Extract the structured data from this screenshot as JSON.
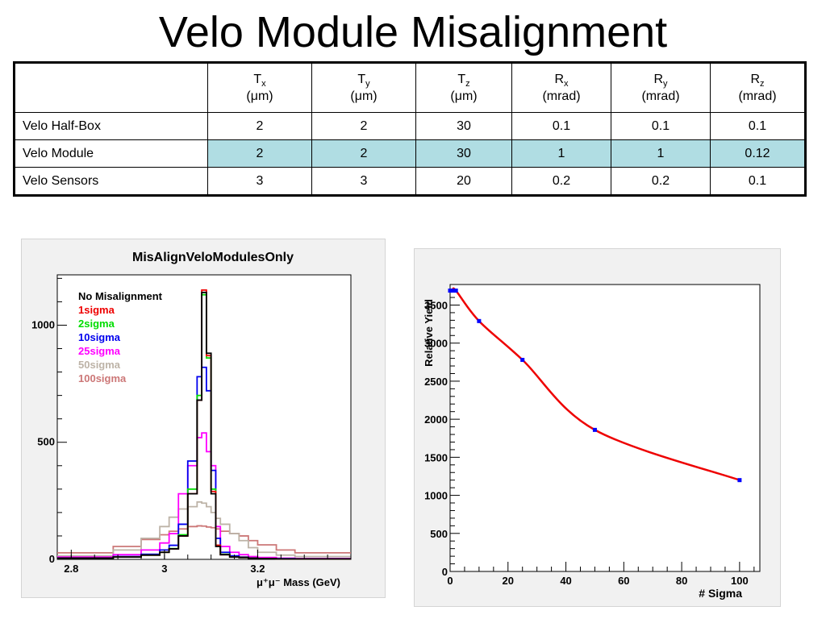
{
  "slide": {
    "title": "Velo Module Misalignment"
  },
  "table": {
    "headers": [
      {
        "sym": "T",
        "sub": "x",
        "unit": "(μm)"
      },
      {
        "sym": "T",
        "sub": "y",
        "unit": "(μm)"
      },
      {
        "sym": "T",
        "sub": "z",
        "unit": "(μm)"
      },
      {
        "sym": "R",
        "sub": "x",
        "unit": "(mrad)"
      },
      {
        "sym": "R",
        "sub": "y",
        "unit": "(mrad)"
      },
      {
        "sym": "R",
        "sub": "z",
        "unit": "(mrad)"
      }
    ],
    "rows": [
      {
        "label": "Velo Half-Box",
        "values": [
          "2",
          "2",
          "30",
          "0.1",
          "0.1",
          "0.1"
        ],
        "highlight": false
      },
      {
        "label": "Velo Module",
        "values": [
          "2",
          "2",
          "30",
          "1",
          "1",
          "0.12"
        ],
        "highlight": true
      },
      {
        "label": "Velo Sensors",
        "values": [
          "3",
          "3",
          "20",
          "0.2",
          "0.2",
          "0.1"
        ],
        "highlight": false
      }
    ],
    "highlight_color": "#b0dde3"
  },
  "chart_data": [
    {
      "type": "line",
      "title": "MisAlignVeloModulesOnly",
      "xlabel": "μ⁺μ⁻ Mass (GeV)",
      "ylabel": "",
      "xlim": [
        2.77,
        3.4
      ],
      "ylim": [
        0,
        1215
      ],
      "x_ticks": [
        2.8,
        3,
        3.2
      ],
      "y_ticks": [
        0,
        500,
        1000
      ],
      "legend_position": "top-left",
      "grid": false,
      "bin_edges": [
        2.77,
        2.89,
        2.95,
        2.99,
        3.01,
        3.03,
        3.05,
        3.07,
        3.08,
        3.09,
        3.1,
        3.11,
        3.12,
        3.14,
        3.16,
        3.18,
        3.2,
        3.24,
        3.28,
        3.4
      ],
      "series": [
        {
          "name": "No Misalignment",
          "color": "#000000",
          "values": [
            5,
            10,
            18,
            30,
            45,
            100,
            280,
            680,
            1140,
            880,
            280,
            55,
            20,
            10,
            8,
            5,
            3,
            2,
            2
          ]
        },
        {
          "name": "1sigma",
          "color": "#ee0000",
          "values": [
            5,
            10,
            18,
            30,
            45,
            100,
            280,
            680,
            1150,
            870,
            290,
            60,
            20,
            10,
            8,
            5,
            3,
            2,
            2
          ]
        },
        {
          "name": "2sigma",
          "color": "#00dd00",
          "values": [
            5,
            10,
            18,
            30,
            46,
            105,
            300,
            700,
            1130,
            860,
            300,
            60,
            22,
            10,
            8,
            5,
            3,
            2,
            2
          ]
        },
        {
          "name": "10sigma",
          "color": "#0000ee",
          "values": [
            6,
            12,
            22,
            40,
            60,
            150,
            420,
            780,
            820,
            720,
            380,
            90,
            30,
            15,
            10,
            6,
            4,
            3,
            2
          ]
        },
        {
          "name": "25sigma",
          "color": "#ff00ff",
          "values": [
            10,
            20,
            40,
            70,
            110,
            280,
            400,
            520,
            540,
            460,
            400,
            140,
            55,
            30,
            20,
            12,
            8,
            5,
            4
          ]
        },
        {
          "name": "50sigma",
          "color": "#bdb3a7",
          "values": [
            15,
            40,
            90,
            140,
            180,
            215,
            225,
            245,
            240,
            225,
            200,
            175,
            150,
            110,
            80,
            50,
            30,
            18,
            12
          ]
        },
        {
          "name": "100sigma",
          "color": "#cc7777",
          "values": [
            28,
            55,
            85,
            105,
            120,
            130,
            140,
            143,
            142,
            138,
            135,
            130,
            120,
            110,
            100,
            80,
            62,
            40,
            28
          ]
        }
      ]
    },
    {
      "type": "line",
      "title": "",
      "xlabel": "# Sigma",
      "ylabel": "Relative Yield",
      "xlim": [
        0,
        107
      ],
      "ylim": [
        0,
        3770
      ],
      "x_ticks": [
        0,
        20,
        40,
        60,
        80,
        100
      ],
      "y_ticks": [
        0,
        500,
        1000,
        1500,
        2000,
        2500,
        3000,
        3500
      ],
      "grid": false,
      "points": [
        {
          "x": 0,
          "y": 3690
        },
        {
          "x": 1,
          "y": 3690
        },
        {
          "x": 2,
          "y": 3690
        },
        {
          "x": 10,
          "y": 3290
        },
        {
          "x": 25,
          "y": 2780
        },
        {
          "x": 50,
          "y": 1860
        },
        {
          "x": 100,
          "y": 1200
        }
      ],
      "curve_color": "#ee0000",
      "marker_color": "#0000ff"
    }
  ]
}
